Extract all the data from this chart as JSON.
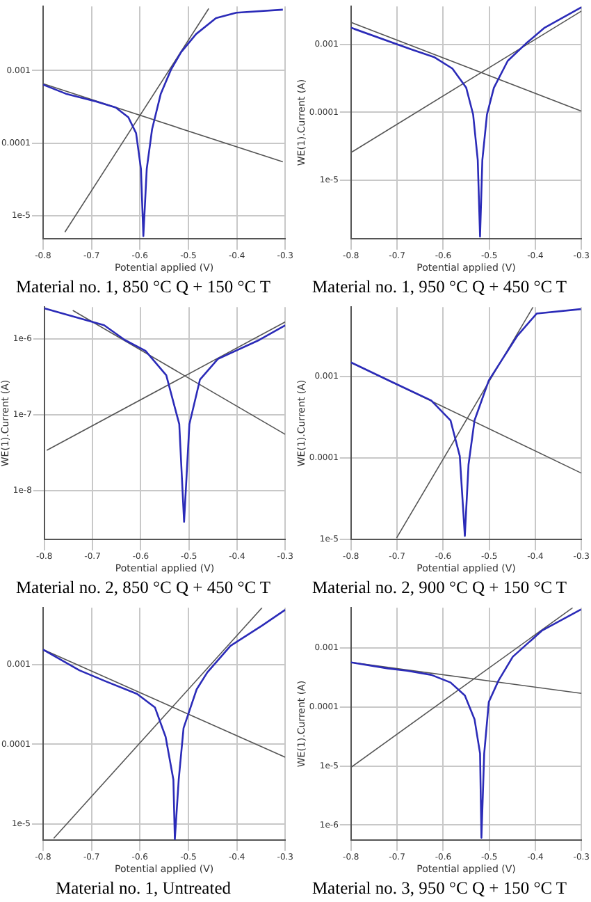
{
  "chart_data": [
    {
      "type": "line",
      "title": "Material no. 1, 850 °C Q + 150 °C T",
      "xlabel": "Potential applied (V)",
      "log": "y",
      "grid": true,
      "legend": false,
      "xlim": [
        -0.8,
        -0.3
      ],
      "xticks": [
        -0.8,
        -0.7,
        -0.6,
        -0.5,
        -0.4,
        -0.3
      ],
      "ylim": [
        4.8e-06,
        0.0077
      ],
      "yticks": [
        {
          "value": 1e-05,
          "label": "1e-5"
        },
        {
          "value": 0.0001,
          "label": "0.0001"
        },
        {
          "value": 0.001,
          "label": "0.001"
        }
      ],
      "series": [
        {
          "color": "#2b2bb8",
          "x": [
            -0.8,
            -0.753,
            -0.691,
            -0.65,
            -0.624,
            -0.608,
            -0.598,
            -0.593,
            -0.586,
            -0.575,
            -0.557,
            -0.536,
            -0.515,
            -0.484,
            -0.443,
            -0.401,
            -0.305
          ],
          "values": [
            0.00064,
            0.00048,
            0.000375,
            0.00031,
            0.000227,
            0.000137,
            4.4e-05,
            5.2e-06,
            4.4e-05,
            0.000155,
            0.00048,
            0.00103,
            0.0018,
            0.0032,
            0.0053,
            0.0063,
            0.00695
          ]
        },
        {
          "color": "#555555",
          "x": [
            -0.8,
            -0.305
          ],
          "values": [
            0.00066,
            5.5e-05
          ]
        },
        {
          "color": "#555555",
          "x": [
            -0.755,
            -0.458
          ],
          "values": [
            5.9e-06,
            0.0072
          ]
        }
      ]
    },
    {
      "type": "line",
      "title": "Material no. 1, 950 °C Q + 450 °C T",
      "xlabel": "Potential applied (V)",
      "ylabel": "WE(1).Current (A)",
      "log": "y",
      "grid": true,
      "legend": false,
      "xlim": [
        -0.8,
        -0.3
      ],
      "xticks": [
        -0.8,
        -0.7,
        -0.6,
        -0.5,
        -0.4,
        -0.3
      ],
      "ylim": [
        1.4e-06,
        0.0036
      ],
      "yticks": [
        {
          "value": 1e-05,
          "label": "1e-5"
        },
        {
          "value": 0.0001,
          "label": "0.0001"
        },
        {
          "value": 0.001,
          "label": "0.001"
        }
      ],
      "series": [
        {
          "color": "#2b2bb8",
          "x": [
            -0.8,
            -0.67,
            -0.62,
            -0.58,
            -0.55,
            -0.535,
            -0.525,
            -0.52,
            -0.515,
            -0.505,
            -0.49,
            -0.46,
            -0.42,
            -0.38,
            -0.3
          ],
          "values": [
            0.00175,
            0.000845,
            0.00065,
            0.00044,
            0.00023,
            9.3e-05,
            2e-05,
            1.5e-06,
            2e-05,
            9.3e-05,
            0.00023,
            0.00057,
            0.00103,
            0.00175,
            0.0035
          ]
        },
        {
          "color": "#555555",
          "x": [
            -0.8,
            -0.3
          ],
          "values": [
            0.0021,
            0.000104
          ]
        },
        {
          "color": "#555555",
          "x": [
            -0.8,
            -0.3
          ],
          "values": [
            2.57e-05,
            0.00308
          ]
        }
      ]
    },
    {
      "type": "line",
      "title": "Material no. 2, 850 °C Q + 450 °C T",
      "xlabel": "Potential applied (V)",
      "ylabel": "WE(1).Current (A)",
      "log": "y",
      "grid": true,
      "legend": false,
      "xlim": [
        -0.8,
        -0.3
      ],
      "xticks": [
        -0.8,
        -0.7,
        -0.6,
        -0.5,
        -0.4,
        -0.3
      ],
      "ylim": [
        2.3e-09,
        2.6e-06
      ],
      "yticks": [
        {
          "value": 1e-08,
          "label": "1e-8"
        },
        {
          "value": 1e-07,
          "label": "1e-7"
        },
        {
          "value": 1e-06,
          "label": "1e-6"
        }
      ],
      "series": [
        {
          "color": "#2b2bb8",
          "x": [
            -0.8,
            -0.676,
            -0.633,
            -0.59,
            -0.547,
            -0.52,
            -0.51,
            -0.499,
            -0.477,
            -0.44,
            -0.354,
            -0.3
          ],
          "values": [
            2.5e-06,
            1.5e-06,
            9.6e-07,
            6.9e-07,
            3.3e-07,
            7.5e-08,
            3.9e-09,
            7.5e-08,
            2.9e-07,
            5.4e-07,
            9.6e-07,
            1.5e-06
          ]
        },
        {
          "color": "#555555",
          "x": [
            -0.741,
            -0.3
          ],
          "values": [
            2.35e-06,
            5.5e-08
          ]
        },
        {
          "color": "#555555",
          "x": [
            -0.795,
            -0.3
          ],
          "values": [
            3.4e-08,
            1.66e-06
          ]
        }
      ]
    },
    {
      "type": "line",
      "title": "Material no. 2, 900 °C Q + 150 °C T",
      "xlabel": "Potential applied (V)",
      "ylabel": "WE(1).Current (A)",
      "log": "y",
      "grid": true,
      "legend": false,
      "xlim": [
        -0.8,
        -0.3
      ],
      "xticks": [
        -0.8,
        -0.7,
        -0.6,
        -0.5,
        -0.4,
        -0.3
      ],
      "ylim": [
        1e-05,
        0.0072
      ],
      "yticks": [
        {
          "value": 1e-05,
          "label": "1e-5"
        },
        {
          "value": 0.0001,
          "label": "0.0001"
        },
        {
          "value": 0.001,
          "label": "0.001"
        }
      ],
      "series": [
        {
          "color": "#2b2bb8",
          "x": [
            -0.8,
            -0.709,
            -0.626,
            -0.584,
            -0.564,
            -0.553,
            -0.545,
            -0.532,
            -0.501,
            -0.47,
            -0.439,
            -0.397,
            -0.301
          ],
          "values": [
            0.0015,
            0.00085,
            0.00051,
            0.00029,
            0.000106,
            1.1e-05,
            8.3e-05,
            0.00029,
            0.0009,
            0.0017,
            0.0032,
            0.006,
            0.0068
          ]
        },
        {
          "color": "#555555",
          "x": [
            -0.8,
            -0.3
          ],
          "values": [
            0.0015,
            6.5e-05
          ]
        },
        {
          "color": "#555555",
          "x": [
            -0.701,
            -0.405
          ],
          "values": [
            1.04e-05,
            0.0072
          ]
        }
      ]
    },
    {
      "type": "line",
      "title": "Material no. 1, Untreated",
      "xlabel": "Potential applied (V)",
      "log": "y",
      "grid": true,
      "legend": false,
      "xlim": [
        -0.8,
        -0.3
      ],
      "xticks": [
        -0.8,
        -0.7,
        -0.6,
        -0.5,
        -0.4,
        -0.3
      ],
      "ylim": [
        6.3e-06,
        0.0052
      ],
      "yticks": [
        {
          "value": 1e-05,
          "label": "1e-5"
        },
        {
          "value": 0.0001,
          "label": "0.0001"
        },
        {
          "value": 0.001,
          "label": "0.001"
        }
      ],
      "series": [
        {
          "color": "#2b2bb8",
          "x": [
            -0.8,
            -0.725,
            -0.671,
            -0.606,
            -0.569,
            -0.547,
            -0.531,
            -0.528,
            -0.52,
            -0.51,
            -0.483,
            -0.461,
            -0.413,
            -0.348,
            -0.3
          ],
          "values": [
            0.00155,
            0.00085,
            0.00062,
            0.00043,
            0.00029,
            0.000124,
            3.6e-05,
            6.4e-06,
            3.6e-05,
            0.00016,
            0.00049,
            0.0008,
            0.00173,
            0.0031,
            0.0049
          ]
        },
        {
          "color": "#555555",
          "x": [
            -0.8,
            -0.3
          ],
          "values": [
            0.00155,
            6.9e-05
          ]
        },
        {
          "color": "#555555",
          "x": [
            -0.778,
            -0.348
          ],
          "values": [
            6.6e-06,
            0.0052
          ]
        }
      ]
    },
    {
      "type": "line",
      "title": "Material no. 3, 950 °C Q + 150 °C T",
      "xlabel": "Potential applied (V)",
      "ylabel": "WE(1).Current (A)",
      "log": "y",
      "grid": true,
      "legend": false,
      "xlim": [
        -0.8,
        -0.3
      ],
      "xticks": [
        -0.8,
        -0.7,
        -0.6,
        -0.5,
        -0.4,
        -0.3
      ],
      "ylim": [
        5.6e-07,
        0.0048
      ],
      "yticks": [
        {
          "value": 1e-06,
          "label": "1e-6"
        },
        {
          "value": 1e-05,
          "label": "1e-5"
        },
        {
          "value": 0.0001,
          "label": "0.0001"
        },
        {
          "value": 0.001,
          "label": "0.001"
        }
      ],
      "series": [
        {
          "color": "#2b2bb8",
          "x": [
            -0.8,
            -0.72,
            -0.678,
            -0.626,
            -0.584,
            -0.553,
            -0.532,
            -0.52,
            -0.517,
            -0.511,
            -0.501,
            -0.48,
            -0.449,
            -0.386,
            -0.301
          ],
          "values": [
            0.00057,
            0.00045,
            0.00041,
            0.00035,
            0.00026,
            0.000157,
            6.2e-05,
            1.63e-05,
            6.1e-07,
            1.63e-05,
            0.000122,
            0.00028,
            0.00071,
            0.00196,
            0.0045
          ]
        },
        {
          "color": "#555555",
          "x": [
            -0.8,
            -0.3
          ],
          "values": [
            0.00057,
            0.00017
          ]
        },
        {
          "color": "#555555",
          "x": [
            -0.8,
            -0.319
          ],
          "values": [
            9.5e-06,
            0.0048
          ]
        }
      ]
    }
  ]
}
